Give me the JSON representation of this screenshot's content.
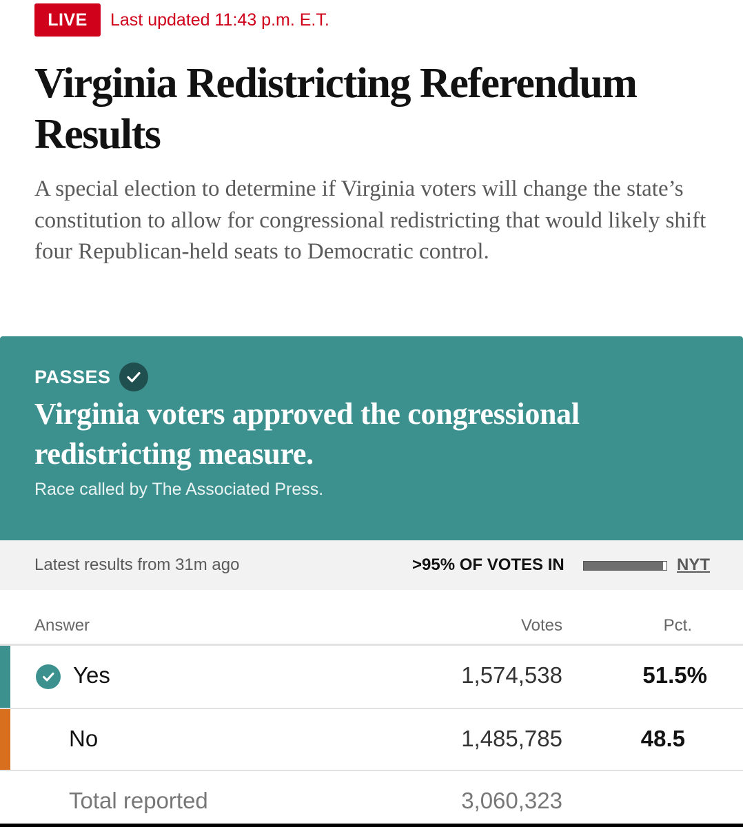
{
  "header": {
    "live_label": "LIVE",
    "last_updated": "Last updated 11:43 p.m. E.T.",
    "title": "Virginia Redistricting Referendum Results",
    "description": "A special election to determine if Virginia voters will change the state’s constitution to allow for congressional redistricting that would likely shift four Republican-held seats to Democratic control."
  },
  "result_banner": {
    "status": "PASSES",
    "status_icon": "checkmark-icon",
    "headline": "Virginia voters approved the congressional redistricting measure.",
    "credit": "Race called by The Associated Press.",
    "color": "#3c918f"
  },
  "status_bar": {
    "latest_results": "Latest results from 31m ago",
    "votes_in": ">95% OF VOTES IN",
    "votes_in_progress": 0.96,
    "source_link": "NYT"
  },
  "table": {
    "columns": [
      "Answer",
      "Votes",
      "Pct."
    ],
    "rows": [
      {
        "answer": "Yes",
        "votes": "1,574,538",
        "pct": "51.5%",
        "winner": true,
        "color": "#3c918f"
      },
      {
        "answer": "No",
        "votes": "1,485,785",
        "pct": "48.5",
        "winner": false,
        "color": "#d86f1f"
      }
    ],
    "total": {
      "label": "Total reported",
      "votes": "3,060,323"
    }
  }
}
